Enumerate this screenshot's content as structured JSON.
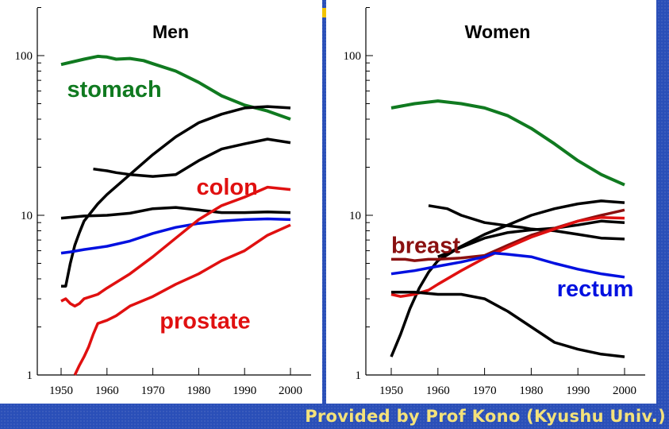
{
  "footer": {
    "credit": "Provided by Prof Kono (Kyushu Univ.)"
  },
  "chart_data": [
    {
      "type": "line",
      "title": "Men",
      "xlabel": "",
      "ylabel": "",
      "y_scale": "log",
      "xlim": [
        1950,
        2000
      ],
      "ylim": [
        1,
        200
      ],
      "x_ticks": [
        "1950",
        "1960",
        "1970",
        "1980",
        "1990",
        "2000"
      ],
      "y_ticks": [
        1,
        10,
        100
      ],
      "y_tick_labels": [
        "1",
        "10",
        "100"
      ],
      "grid": false,
      "annotations": [
        {
          "text": "stomach",
          "color": "#107a20",
          "x": 1951.3,
          "y": 55
        },
        {
          "text": "colon",
          "color": "#e01010",
          "x": 1979.5,
          "y": 13.5
        },
        {
          "text": "prostate",
          "color": "#e01010",
          "x": 1971.5,
          "y": 1.95
        }
      ],
      "series": [
        {
          "color": "#107a20",
          "width": 4,
          "x": [
            1950,
            1955,
            1958,
            1960,
            1962,
            1965,
            1968,
            1970,
            1975,
            1980,
            1985,
            1990,
            1995,
            2000
          ],
          "y": [
            88,
            95,
            99,
            98,
            95,
            96,
            93,
            89,
            80,
            68,
            56,
            49,
            45,
            40
          ]
        },
        {
          "color": "#000000",
          "width": 3.5,
          "x": [
            1950,
            1951,
            1952,
            1953,
            1954,
            1955,
            1958,
            1960,
            1965,
            1970,
            1975,
            1980,
            1985,
            1990,
            1995,
            2000
          ],
          "y": [
            3.6,
            3.6,
            5.0,
            6.5,
            7.8,
            9.2,
            11.8,
            13.5,
            18,
            24,
            31,
            38,
            43,
            47,
            48,
            47
          ]
        },
        {
          "color": "#000000",
          "width": 3.5,
          "x": [
            1957,
            1960,
            1962,
            1965,
            1970,
            1975,
            1980,
            1985,
            1990,
            1995,
            2000
          ],
          "y": [
            19.5,
            19,
            18.5,
            18,
            17.5,
            18,
            22,
            26,
            28,
            30,
            28.5
          ]
        },
        {
          "color": "#000000",
          "width": 3.5,
          "x": [
            1950,
            1955,
            1960,
            1965,
            1970,
            1975,
            1980,
            1985,
            1990,
            1995,
            2000
          ],
          "y": [
            9.6,
            9.9,
            10,
            10.3,
            11,
            11.2,
            10.8,
            10.4,
            10.4,
            10.5,
            10.4
          ]
        },
        {
          "color": "#0010e0",
          "width": 3.5,
          "x": [
            1950,
            1952,
            1955,
            1960,
            1965,
            1970,
            1975,
            1980,
            1985,
            1990,
            1995,
            2000
          ],
          "y": [
            5.8,
            5.9,
            6.1,
            6.4,
            6.9,
            7.7,
            8.4,
            8.9,
            9.2,
            9.4,
            9.5,
            9.4
          ]
        },
        {
          "color": "#e01010",
          "width": 3.5,
          "x": [
            1950,
            1951,
            1952,
            1953,
            1954,
            1955,
            1958,
            1960,
            1965,
            1970,
            1975,
            1980,
            1985,
            1990,
            1995,
            2000
          ],
          "y": [
            2.9,
            3.0,
            2.8,
            2.7,
            2.8,
            3.0,
            3.2,
            3.5,
            4.3,
            5.5,
            7.2,
            9.4,
            11.5,
            13,
            15,
            14.5
          ]
        },
        {
          "color": "#e01010",
          "width": 3.5,
          "x": [
            1953,
            1954,
            1955,
            1956,
            1957,
            1958,
            1960,
            1962,
            1965,
            1970,
            1975,
            1980,
            1985,
            1990,
            1995,
            2000
          ],
          "y": [
            1.0,
            1.15,
            1.3,
            1.5,
            1.8,
            2.1,
            2.2,
            2.35,
            2.7,
            3.1,
            3.7,
            4.3,
            5.2,
            6.0,
            7.5,
            8.7
          ]
        }
      ]
    },
    {
      "type": "line",
      "title": "Women",
      "xlabel": "",
      "ylabel": "",
      "y_scale": "log",
      "xlim": [
        1950,
        2000
      ],
      "ylim": [
        1,
        200
      ],
      "x_ticks": [
        "1950",
        "1960",
        "1970",
        "1980",
        "1990",
        "2000"
      ],
      "y_ticks": [
        1,
        10,
        100
      ],
      "y_tick_labels": [
        "1",
        "10",
        "100"
      ],
      "grid": false,
      "annotations": [
        {
          "text": "breast",
          "color": "#8a1010",
          "x": 1950,
          "y": 5.8
        },
        {
          "text": "rectum",
          "color": "#0010e0",
          "x": 1985.5,
          "y": 3.1
        }
      ],
      "series": [
        {
          "color": "#107a20",
          "width": 4,
          "x": [
            1950,
            1955,
            1960,
            1965,
            1970,
            1975,
            1980,
            1985,
            1990,
            1995,
            2000
          ],
          "y": [
            47,
            50,
            52,
            50,
            47,
            42,
            35,
            28,
            22,
            18,
            15.5
          ]
        },
        {
          "color": "#000000",
          "width": 3.5,
          "x": [
            1958,
            1962,
            1965,
            1970,
            1975,
            1978,
            1980,
            1985,
            1990,
            1995,
            2000
          ],
          "y": [
            11.5,
            11,
            10,
            9,
            8.6,
            8.4,
            8.2,
            8,
            7.6,
            7.2,
            7.1
          ]
        },
        {
          "color": "#000000",
          "width": 3.5,
          "x": [
            1950,
            1952,
            1954,
            1956,
            1958,
            1960,
            1965,
            1970,
            1975,
            1980,
            1985,
            1990,
            1995,
            2000
          ],
          "y": [
            1.3,
            1.8,
            2.6,
            3.5,
            4.4,
            5.2,
            6.4,
            7.6,
            8.7,
            10,
            11,
            11.8,
            12.3,
            12
          ]
        },
        {
          "color": "#000000",
          "width": 3.5,
          "x": [
            1960,
            1965,
            1970,
            1975,
            1980,
            1985,
            1990,
            1995,
            2000
          ],
          "y": [
            5.5,
            6.3,
            7.2,
            7.8,
            8.1,
            8.3,
            8.7,
            9.2,
            9
          ]
        },
        {
          "color": "#8a1010",
          "width": 3.5,
          "x": [
            1950,
            1953,
            1955,
            1958,
            1960,
            1965,
            1970,
            1975,
            1980,
            1985,
            1990,
            1995,
            2000
          ],
          "y": [
            5.3,
            5.3,
            5.2,
            5.3,
            5.3,
            5.4,
            5.6,
            6.5,
            7.5,
            8.3,
            9.2,
            10,
            10.8
          ]
        },
        {
          "color": "#e01010",
          "width": 3.5,
          "x": [
            1950,
            1952,
            1955,
            1958,
            1960,
            1965,
            1970,
            1975,
            1980,
            1985,
            1990,
            1995,
            2000
          ],
          "y": [
            3.2,
            3.1,
            3.2,
            3.4,
            3.7,
            4.5,
            5.4,
            6.3,
            7.3,
            8.2,
            9.2,
            9.7,
            9.6
          ]
        },
        {
          "color": "#0010e0",
          "width": 3.5,
          "x": [
            1950,
            1955,
            1960,
            1965,
            1970,
            1972,
            1975,
            1980,
            1985,
            1990,
            1995,
            2000
          ],
          "y": [
            4.3,
            4.5,
            4.8,
            5.1,
            5.5,
            5.8,
            5.7,
            5.5,
            5.0,
            4.6,
            4.3,
            4.1
          ]
        },
        {
          "color": "#000000",
          "width": 3.5,
          "x": [
            1950,
            1955,
            1960,
            1965,
            1970,
            1975,
            1980,
            1985,
            1990,
            1995,
            2000
          ],
          "y": [
            3.3,
            3.3,
            3.2,
            3.2,
            3.0,
            2.5,
            2.0,
            1.6,
            1.45,
            1.35,
            1.3
          ]
        }
      ]
    }
  ]
}
